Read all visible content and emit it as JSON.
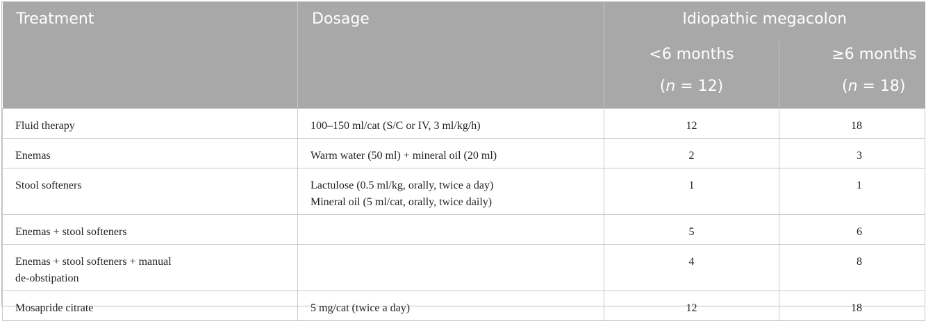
{
  "header": {
    "col_treatment": "Treatment",
    "col_dosage": "Dosage",
    "group": "Idiopathic megacolon",
    "sub1_label": "<6 months",
    "sub1_n_prefix": "(",
    "sub1_n_var": "n",
    "sub1_n_rest": " = 12)",
    "sub2_label": "≥6 months",
    "sub2_n_prefix": "(",
    "sub2_n_var": "n",
    "sub2_n_rest": " = 18)"
  },
  "rows": [
    {
      "treatment": "Fluid therapy",
      "dosage": "100–150 ml/cat (S/C or IV, 3 ml/kg/h)",
      "dosage2": "",
      "lt6": "12",
      "ge6": "18"
    },
    {
      "treatment": "Enemas",
      "dosage": "Warm water (50 ml) + mineral oil (20 ml)",
      "dosage2": "",
      "lt6": "2",
      "ge6": "3"
    },
    {
      "treatment": "Stool softeners",
      "dosage": "Lactulose (0.5 ml/kg, orally, twice a day)",
      "dosage2": "Mineral oil (5 ml/cat, orally, twice daily)",
      "lt6": "1",
      "ge6": "1"
    },
    {
      "treatment": "Enemas + stool softeners",
      "dosage": "",
      "dosage2": "",
      "lt6": "5",
      "ge6": "6"
    },
    {
      "treatment": "Enemas + stool softeners + manual",
      "treatment2": "de-obstipation",
      "dosage": "",
      "dosage2": "",
      "lt6": "4",
      "ge6": "8"
    },
    {
      "treatment": "Mosapride citrate",
      "dosage": "5 mg/cat (twice a day)",
      "dosage2": "",
      "lt6": "12",
      "ge6": "18"
    }
  ]
}
